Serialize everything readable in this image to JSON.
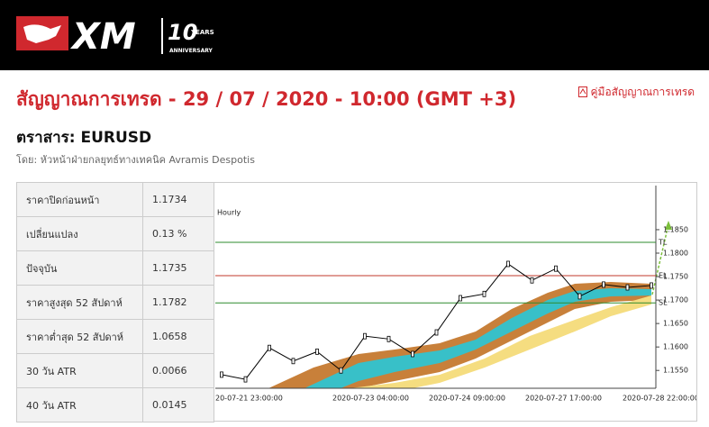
{
  "header": {
    "logo_text": "XM",
    "anniversary_number": "10",
    "anniversary_years": "YEARS",
    "anniversary_word": "ANNIVERSARY"
  },
  "title": "สัญญาณการเทรด - 29 / 07 / 2020 - 10:00 (GMT +3)",
  "guide_link": "คู่มือสัญญาณการเทรด",
  "instrument": "ตราสาร: EURUSD",
  "author": "โดย: หัวหน้าฝ่ายกลยุทธ์ทางเทคนิค Avramis Despotis",
  "table": {
    "rows": [
      [
        "ราคาปิดก่อนหน้า",
        "1.1734"
      ],
      [
        "เปลี่ยนแปลง",
        "0.13 %"
      ],
      [
        "ปัจจุบัน",
        "1.1735"
      ],
      [
        "ราคาสูงสุด 52 สัปดาห์",
        "1.1782"
      ],
      [
        "ราคาต่ำสุด 52 สัปดาห์",
        "1.0658"
      ],
      [
        "30 วัน ATR",
        "0.0066"
      ],
      [
        "40 วัน ATR",
        "0.0145"
      ]
    ]
  },
  "chart_data": {
    "type": "line",
    "title": "Hourly",
    "x_labels": [
      "20-07-21 23:00:00",
      "2020-07-23 04:00:00",
      "2020-07-24 09:00:00",
      "2020-07-27 17:00:00",
      "2020-07-28 22:00:00"
    ],
    "values": [
      1.1541,
      1.1531,
      1.1598,
      1.157,
      1.159,
      1.155,
      1.1623,
      1.1617,
      1.1585,
      1.1631,
      1.1704,
      1.1713,
      1.1777,
      1.1742,
      1.1767,
      1.1708,
      1.1733,
      1.1727,
      1.1731
    ],
    "color": "#000000",
    "ylim": [
      1.1512,
      1.1944
    ],
    "yticks": [
      {
        "value": 1.185,
        "label": "1.1850"
      },
      {
        "value": 1.18,
        "label": "1.1800"
      },
      {
        "value": 1.175,
        "label": "1.1750"
      },
      {
        "value": 1.17,
        "label": "1.1700"
      },
      {
        "value": 1.165,
        "label": "1.1650"
      },
      {
        "value": 1.16,
        "label": "1.1600"
      },
      {
        "value": 1.155,
        "label": "1.1550"
      }
    ],
    "levels": [
      {
        "label": "TL",
        "value": 1.1823,
        "color": "#2e8b2e"
      },
      {
        "label": "EL",
        "value": 1.1752,
        "color": "#c0392b"
      },
      {
        "label": "SL",
        "value": 1.1694,
        "color": "#2e8b2e"
      }
    ]
  }
}
